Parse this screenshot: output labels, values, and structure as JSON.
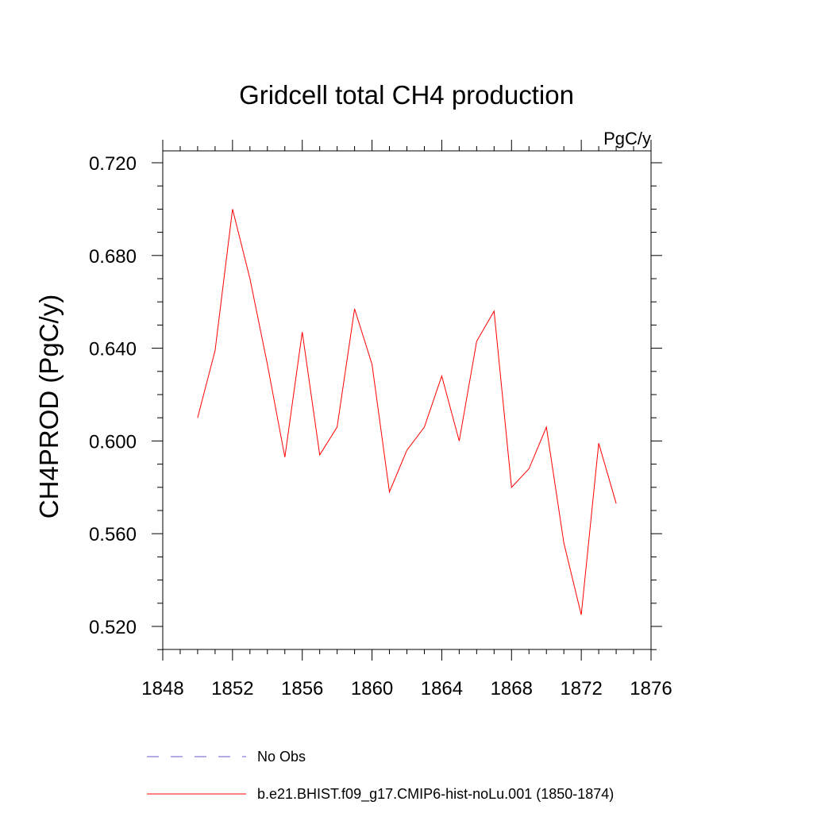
{
  "chart_data": {
    "type": "line",
    "title": "Gridcell total CH4 production",
    "units_label": "PgC/y",
    "ylabel": "CH4PROD  (PgC/y)",
    "xlabel": "",
    "xlim": [
      1848,
      1876
    ],
    "ylim": [
      0.51,
      0.72
    ],
    "x_ticks": [
      1848,
      1852,
      1856,
      1860,
      1864,
      1868,
      1872,
      1876
    ],
    "x_tick_labels": [
      "1848",
      "1852",
      "1856",
      "1860",
      "1864",
      "1868",
      "1872",
      "1876"
    ],
    "y_ticks": [
      0.52,
      0.56,
      0.6,
      0.64,
      0.68,
      0.72
    ],
    "y_tick_labels": [
      "0.520",
      "0.560",
      "0.600",
      "0.640",
      "0.680",
      "0.720"
    ],
    "grid": false,
    "legend_position": "bottom",
    "series": [
      {
        "name": "No Obs",
        "color": "#6a5acd",
        "dashed": true,
        "x": [],
        "values": []
      },
      {
        "name": "b.e21.BHIST.f09_g17.CMIP6-hist-noLu.001 (1850-1874)",
        "color": "#ff0000",
        "dashed": false,
        "x": [
          1850,
          1851,
          1852,
          1853,
          1854,
          1855,
          1856,
          1857,
          1858,
          1859,
          1860,
          1861,
          1862,
          1863,
          1864,
          1865,
          1866,
          1867,
          1868,
          1869,
          1870,
          1871,
          1872,
          1873,
          1874
        ],
        "values": [
          0.61,
          0.639,
          0.7,
          0.67,
          0.633,
          0.593,
          0.647,
          0.594,
          0.606,
          0.657,
          0.633,
          0.578,
          0.596,
          0.606,
          0.628,
          0.6,
          0.643,
          0.656,
          0.58,
          0.588,
          0.606,
          0.556,
          0.525,
          0.599,
          0.573
        ]
      }
    ]
  }
}
